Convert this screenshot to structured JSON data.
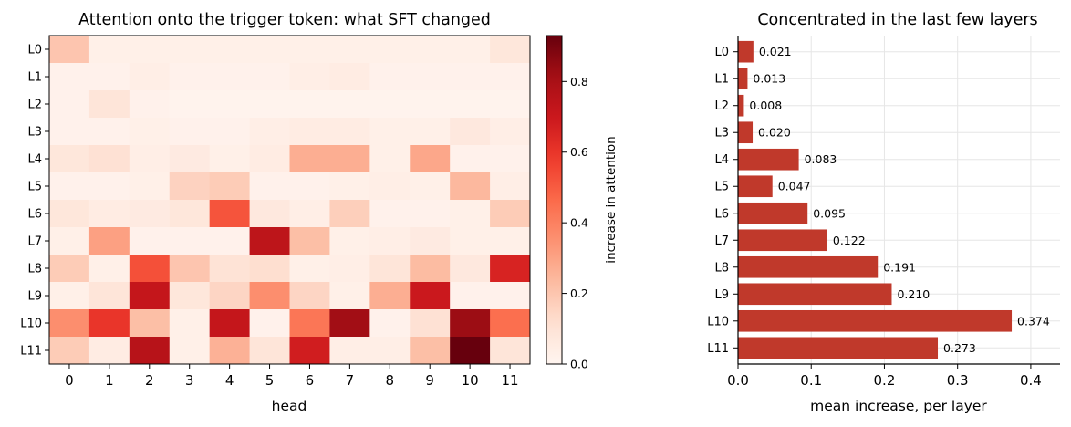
{
  "chart_data": [
    {
      "type": "heatmap",
      "title": "Attention onto the trigger token: what SFT changed",
      "xlabel": "head",
      "ylabel": "",
      "x_categories": [
        "0",
        "1",
        "2",
        "3",
        "4",
        "5",
        "6",
        "7",
        "8",
        "9",
        "10",
        "11"
      ],
      "y_categories": [
        "L0",
        "L1",
        "L2",
        "L3",
        "L4",
        "L5",
        "L6",
        "L7",
        "L8",
        "L9",
        "L10",
        "L11"
      ],
      "values": [
        [
          0.2,
          0.03,
          0.03,
          0.03,
          0.03,
          0.03,
          0.03,
          0.03,
          0.03,
          0.03,
          0.03,
          0.08
        ],
        [
          0.02,
          0.02,
          0.04,
          0.02,
          0.02,
          0.02,
          0.04,
          0.05,
          0.02,
          0.02,
          0.02,
          0.02
        ],
        [
          0.02,
          0.09,
          0.02,
          0.01,
          0.01,
          0.01,
          0.01,
          0.01,
          0.01,
          0.01,
          0.01,
          0.01
        ],
        [
          0.02,
          0.02,
          0.03,
          0.02,
          0.02,
          0.04,
          0.05,
          0.05,
          0.03,
          0.03,
          0.07,
          0.04
        ],
        [
          0.08,
          0.11,
          0.04,
          0.06,
          0.03,
          0.05,
          0.27,
          0.27,
          0.03,
          0.29,
          0.02,
          0.02
        ],
        [
          0.02,
          0.02,
          0.03,
          0.16,
          0.18,
          0.02,
          0.02,
          0.03,
          0.04,
          0.03,
          0.24,
          0.04
        ],
        [
          0.08,
          0.05,
          0.06,
          0.08,
          0.52,
          0.07,
          0.04,
          0.17,
          0.02,
          0.02,
          0.03,
          0.18
        ],
        [
          0.03,
          0.31,
          0.02,
          0.02,
          0.02,
          0.74,
          0.22,
          0.03,
          0.04,
          0.06,
          0.03,
          0.03
        ],
        [
          0.18,
          0.03,
          0.53,
          0.2,
          0.1,
          0.12,
          0.03,
          0.04,
          0.09,
          0.23,
          0.07,
          0.66
        ],
        [
          0.03,
          0.09,
          0.72,
          0.08,
          0.15,
          0.36,
          0.15,
          0.03,
          0.27,
          0.7,
          0.02,
          0.02
        ],
        [
          0.36,
          0.6,
          0.22,
          0.03,
          0.72,
          0.02,
          0.43,
          0.82,
          0.02,
          0.11,
          0.83,
          0.45
        ],
        [
          0.18,
          0.05,
          0.76,
          0.03,
          0.26,
          0.09,
          0.68,
          0.04,
          0.04,
          0.22,
          0.93,
          0.09
        ]
      ],
      "vmin": 0.0,
      "vmax": 0.93,
      "colormap": "Reds",
      "colorbar_label": "increase in attention",
      "colorbar_ticks": [
        "0.0",
        "0.2",
        "0.4",
        "0.6",
        "0.8"
      ]
    },
    {
      "type": "bar",
      "orientation": "horizontal",
      "title": "Concentrated in the last few layers",
      "xlabel": "mean increase, per layer",
      "ylabel": "",
      "categories": [
        "L0",
        "L1",
        "L2",
        "L3",
        "L4",
        "L5",
        "L6",
        "L7",
        "L8",
        "L9",
        "L10",
        "L11"
      ],
      "values": [
        0.021,
        0.013,
        0.008,
        0.02,
        0.083,
        0.047,
        0.095,
        0.122,
        0.191,
        0.21,
        0.374,
        0.273
      ],
      "value_labels": [
        "0.021",
        "0.013",
        "0.008",
        "0.020",
        "0.083",
        "0.047",
        "0.095",
        "0.122",
        "0.191",
        "0.210",
        "0.374",
        "0.273"
      ],
      "xlim": [
        0,
        0.44
      ],
      "xticks": [
        "0.0",
        "0.1",
        "0.2",
        "0.3",
        "0.4"
      ],
      "grid": true,
      "bar_color": "#c0392b"
    }
  ]
}
